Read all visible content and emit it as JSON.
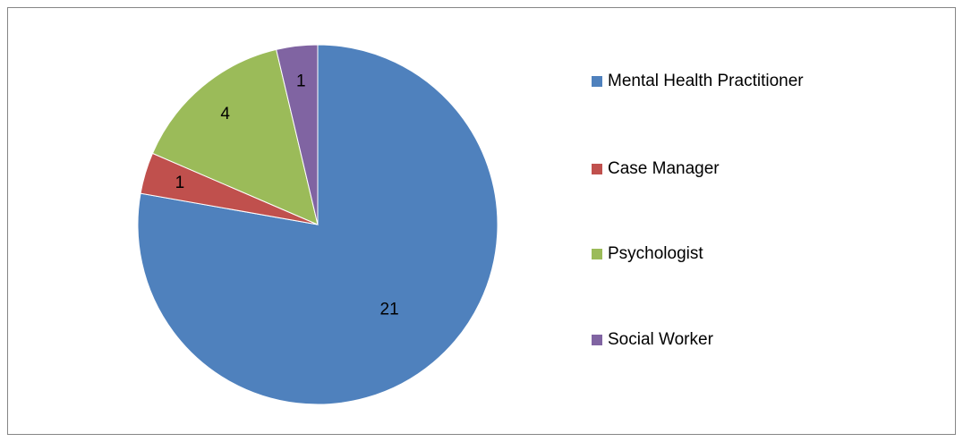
{
  "chart_data": {
    "type": "pie",
    "categories": [
      "Mental Health Practitioner",
      "Case Manager",
      "Psychologist",
      "Social Worker"
    ],
    "values": [
      21,
      1,
      4,
      1
    ],
    "colors": [
      "#4f81bd",
      "#c0504d",
      "#9bbb59",
      "#8064a2"
    ],
    "legend": "right"
  }
}
